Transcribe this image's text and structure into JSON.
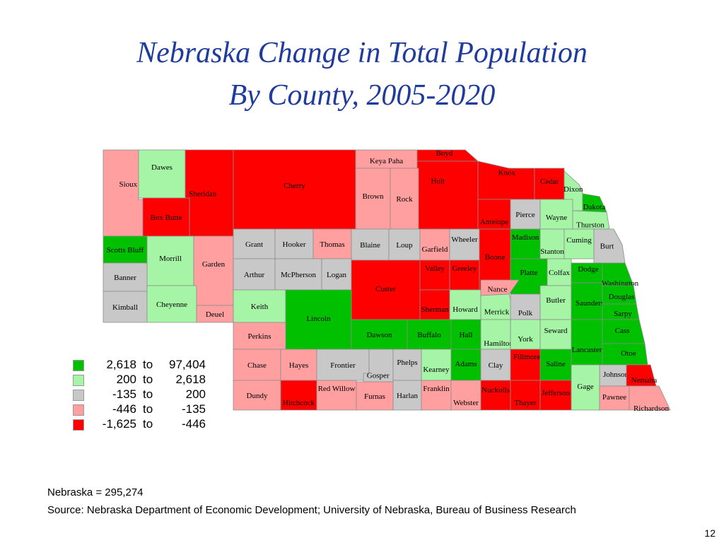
{
  "title": {
    "line1": "Nebraska Change in Total Population",
    "line2": "By County, 2005-2020"
  },
  "colors": {
    "top": "#00c000",
    "upper": "#a6f5a6",
    "middle": "#c8c8c8",
    "lower": "#ff9f9f",
    "bottom": "#ff0000"
  },
  "legend": [
    {
      "from": "2,618",
      "word": "to",
      "to": "97,404",
      "class": "top"
    },
    {
      "from": "200",
      "word": "to",
      "to": "2,618",
      "class": "upper"
    },
    {
      "from": "-135",
      "word": "to",
      "to": "200",
      "class": "middle"
    },
    {
      "from": "-446",
      "word": "to",
      "to": "-135",
      "class": "lower"
    },
    {
      "from": "-1,625",
      "word": "to",
      "to": "-446",
      "class": "bottom"
    }
  ],
  "counties": [
    {
      "name": "Sioux",
      "class": "lower"
    },
    {
      "name": "Dawes",
      "class": "upper"
    },
    {
      "name": "Box Butte",
      "class": "bottom"
    },
    {
      "name": "Sheridan",
      "class": "bottom"
    },
    {
      "name": "Cherry",
      "class": "bottom"
    },
    {
      "name": "Keya Paha",
      "class": "lower"
    },
    {
      "name": "Boyd",
      "class": "bottom"
    },
    {
      "name": "Brown",
      "class": "lower"
    },
    {
      "name": "Rock",
      "class": "lower"
    },
    {
      "name": "Holt",
      "class": "bottom"
    },
    {
      "name": "Knox",
      "class": "bottom"
    },
    {
      "name": "Cedar",
      "class": "bottom"
    },
    {
      "name": "Dixon",
      "class": "upper"
    },
    {
      "name": "Dakota",
      "class": "top"
    },
    {
      "name": "Antelope",
      "class": "bottom"
    },
    {
      "name": "Pierce",
      "class": "middle"
    },
    {
      "name": "Wayne",
      "class": "upper"
    },
    {
      "name": "Thurston",
      "class": "upper"
    },
    {
      "name": "Scotts Bluff",
      "class": "top"
    },
    {
      "name": "Morrill",
      "class": "upper"
    },
    {
      "name": "Garden",
      "class": "lower"
    },
    {
      "name": "Grant",
      "class": "middle"
    },
    {
      "name": "Hooker",
      "class": "middle"
    },
    {
      "name": "Thomas",
      "class": "lower"
    },
    {
      "name": "Blaine",
      "class": "middle"
    },
    {
      "name": "Loup",
      "class": "middle"
    },
    {
      "name": "Garfield",
      "class": "lower"
    },
    {
      "name": "Wheeler",
      "class": "middle"
    },
    {
      "name": "Madison",
      "class": "top"
    },
    {
      "name": "Stanton",
      "class": "upper"
    },
    {
      "name": "Cuming",
      "class": "upper"
    },
    {
      "name": "Burt",
      "class": "middle"
    },
    {
      "name": "Banner",
      "class": "middle"
    },
    {
      "name": "Arthur",
      "class": "middle"
    },
    {
      "name": "McPherson",
      "class": "middle"
    },
    {
      "name": "Logan",
      "class": "middle"
    },
    {
      "name": "Custer",
      "class": "bottom"
    },
    {
      "name": "Valley",
      "class": "bottom"
    },
    {
      "name": "Greeley",
      "class": "bottom"
    },
    {
      "name": "Boone",
      "class": "bottom"
    },
    {
      "name": "Platte",
      "class": "top"
    },
    {
      "name": "Colfax",
      "class": "upper"
    },
    {
      "name": "Dodge",
      "class": "top"
    },
    {
      "name": "Washington",
      "class": "top"
    },
    {
      "name": "Kimball",
      "class": "middle"
    },
    {
      "name": "Cheyenne",
      "class": "upper"
    },
    {
      "name": "Deuel",
      "class": "lower"
    },
    {
      "name": "Keith",
      "class": "upper"
    },
    {
      "name": "Lincoln",
      "class": "top"
    },
    {
      "name": "Sherman",
      "class": "bottom"
    },
    {
      "name": "Howard",
      "class": "upper"
    },
    {
      "name": "Nance",
      "class": "lower"
    },
    {
      "name": "Merrick",
      "class": "upper"
    },
    {
      "name": "Polk",
      "class": "middle"
    },
    {
      "name": "Butler",
      "class": "upper"
    },
    {
      "name": "Saunders",
      "class": "top"
    },
    {
      "name": "Douglas",
      "class": "top"
    },
    {
      "name": "Sarpy",
      "class": "top"
    },
    {
      "name": "Perkins",
      "class": "lower"
    },
    {
      "name": "Dawson",
      "class": "top"
    },
    {
      "name": "Buffalo",
      "class": "top"
    },
    {
      "name": "Hall",
      "class": "top"
    },
    {
      "name": "Hamilton",
      "class": "upper"
    },
    {
      "name": "York",
      "class": "upper"
    },
    {
      "name": "Seward",
      "class": "upper"
    },
    {
      "name": "Lancaster",
      "class": "top"
    },
    {
      "name": "Cass",
      "class": "top"
    },
    {
      "name": "Chase",
      "class": "lower"
    },
    {
      "name": "Hayes",
      "class": "lower"
    },
    {
      "name": "Frontier",
      "class": "middle"
    },
    {
      "name": "Gosper",
      "class": "middle"
    },
    {
      "name": "Phelps",
      "class": "middle"
    },
    {
      "name": "Kearney",
      "class": "upper"
    },
    {
      "name": "Adams",
      "class": "top"
    },
    {
      "name": "Clay",
      "class": "middle"
    },
    {
      "name": "Fillmore",
      "class": "bottom"
    },
    {
      "name": "Saline",
      "class": "top"
    },
    {
      "name": "Otoe",
      "class": "top"
    },
    {
      "name": "Johnson",
      "class": "middle"
    },
    {
      "name": "Nemaha",
      "class": "bottom"
    },
    {
      "name": "Dundy",
      "class": "lower"
    },
    {
      "name": "Hitchcock",
      "class": "bottom"
    },
    {
      "name": "Red Willow",
      "class": "lower"
    },
    {
      "name": "Furnas",
      "class": "lower"
    },
    {
      "name": "Harlan",
      "class": "middle"
    },
    {
      "name": "Franklin",
      "class": "lower"
    },
    {
      "name": "Webster",
      "class": "lower"
    },
    {
      "name": "Nuckolls",
      "class": "bottom"
    },
    {
      "name": "Thayer",
      "class": "bottom"
    },
    {
      "name": "Jefferson",
      "class": "bottom"
    },
    {
      "name": "Gage",
      "class": "upper"
    },
    {
      "name": "Pawnee",
      "class": "lower"
    },
    {
      "name": "Richardson",
      "class": "lower"
    }
  ],
  "notes": {
    "total": "Nebraska = 295,274",
    "source": "Source:  Nebraska Department of Economic Development; University of Nebraska, Bureau of Business Research"
  },
  "page_number": "12"
}
